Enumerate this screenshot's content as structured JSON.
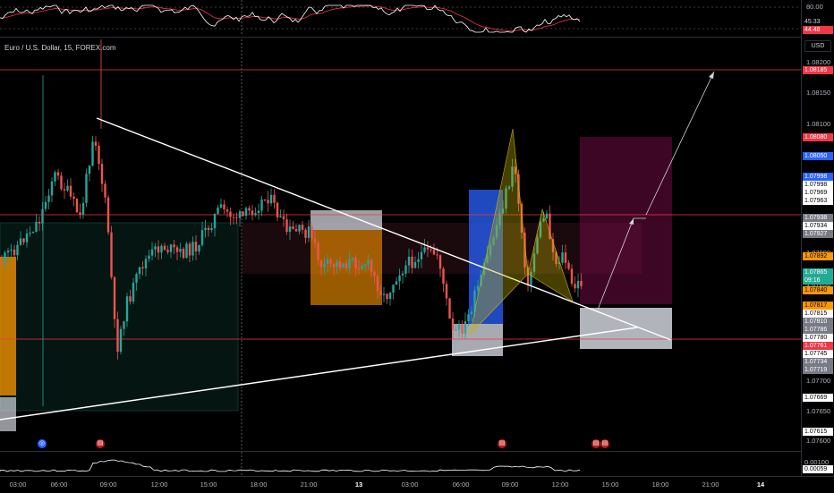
{
  "symbol": {
    "title": "Euro / U.S. Dollar, 15, FOREX.com"
  },
  "currency": "USD",
  "rsi": {
    "levels": [
      "80.00"
    ],
    "value_a": "45.33",
    "value_b": "44.48"
  },
  "price_axis": {
    "ticks": [
      "1.08200",
      "1.08150",
      "1.08100",
      "1.08050",
      "1.07900",
      "1.07850",
      "1.07700",
      "1.07650",
      "1.07600"
    ],
    "tags": [
      {
        "text": "1.08185",
        "bg": "#f23645",
        "fg": "#ffffff"
      },
      {
        "text": "1.08080",
        "bg": "#f23645",
        "fg": "#ffffff"
      },
      {
        "text": "1.08050",
        "bg": "#2962ff",
        "fg": "#ffffff"
      },
      {
        "text": "1.07998",
        "bg": "#2962ff",
        "fg": "#ffffff"
      },
      {
        "text": "1.07998",
        "bg": "#ffffff",
        "fg": "#000000"
      },
      {
        "text": "1.07969",
        "bg": "#ffffff",
        "fg": "#000000"
      },
      {
        "text": "1.07963",
        "bg": "#ffffff",
        "fg": "#000000"
      },
      {
        "text": "1.07958",
        "bg": "#f23645",
        "fg": "#ffffff"
      },
      {
        "text": "1.07938",
        "bg": "#787b86",
        "fg": "#ffffff"
      },
      {
        "text": "1.07934",
        "bg": "#ffffff",
        "fg": "#000000"
      },
      {
        "text": "1.07927",
        "bg": "#787b86",
        "fg": "#ffffff"
      },
      {
        "text": "1.07892",
        "bg": "#ff9800",
        "fg": "#000000"
      },
      {
        "text": "1.07865",
        "bg": "#22ab94",
        "fg": "#ffffff"
      },
      {
        "text": "09:16",
        "bg": "#22ab94",
        "fg": "#ffffff"
      },
      {
        "text": "1.07840",
        "bg": "#ff9800",
        "fg": "#000000"
      },
      {
        "text": "1.07817",
        "bg": "#ff9800",
        "fg": "#000000"
      },
      {
        "text": "1.07815",
        "bg": "#ffffff",
        "fg": "#000000"
      },
      {
        "text": "1.07810",
        "bg": "#787b86",
        "fg": "#ffffff"
      },
      {
        "text": "1.07786",
        "bg": "#787b86",
        "fg": "#ffffff"
      },
      {
        "text": "1.07780",
        "bg": "#ffffff",
        "fg": "#000000"
      },
      {
        "text": "1.07761",
        "bg": "#f23645",
        "fg": "#ffffff"
      },
      {
        "text": "1.07745",
        "bg": "#ffffff",
        "fg": "#000000"
      },
      {
        "text": "1.07734",
        "bg": "#787b86",
        "fg": "#ffffff"
      },
      {
        "text": "1.07719",
        "bg": "#787b86",
        "fg": "#ffffff"
      },
      {
        "text": "1.07669",
        "bg": "#ffffff",
        "fg": "#000000"
      },
      {
        "text": "1.07615",
        "bg": "#ffffff",
        "fg": "#000000"
      }
    ],
    "vol_ticks": [
      "0.00100"
    ],
    "vol_tag": "0.00059"
  },
  "time_axis": {
    "labels": [
      {
        "text": "03:00",
        "bold": false
      },
      {
        "text": "06:00",
        "bold": false
      },
      {
        "text": "09:00",
        "bold": false
      },
      {
        "text": "12:00",
        "bold": false
      },
      {
        "text": "15:00",
        "bold": false
      },
      {
        "text": "18:00",
        "bold": false
      },
      {
        "text": "21:00",
        "bold": false
      },
      {
        "text": "13",
        "bold": true
      },
      {
        "text": "03:00",
        "bold": false
      },
      {
        "text": "06:00",
        "bold": false
      },
      {
        "text": "09:00",
        "bold": false
      },
      {
        "text": "12:00",
        "bold": false
      },
      {
        "text": "15:00",
        "bold": false
      },
      {
        "text": "18:00",
        "bold": false
      },
      {
        "text": "21:00",
        "bold": false
      },
      {
        "text": "14",
        "bold": true
      }
    ]
  },
  "colors": {
    "up": "#26a69a",
    "down": "#ef5350",
    "rsi": "#ffffff",
    "rsi_ma": "#f23645",
    "trendline": "#ffffff",
    "level": "#f23645",
    "zone_orange": "#ff9800",
    "zone_blue": "#2962ff",
    "zone_gray": "#d1d4dc",
    "zone_red": "#880e4f",
    "zone_green": "#0b3d33"
  },
  "icons": {
    "event_a": "earth-icon",
    "event_b": "us-flag-icon"
  }
}
